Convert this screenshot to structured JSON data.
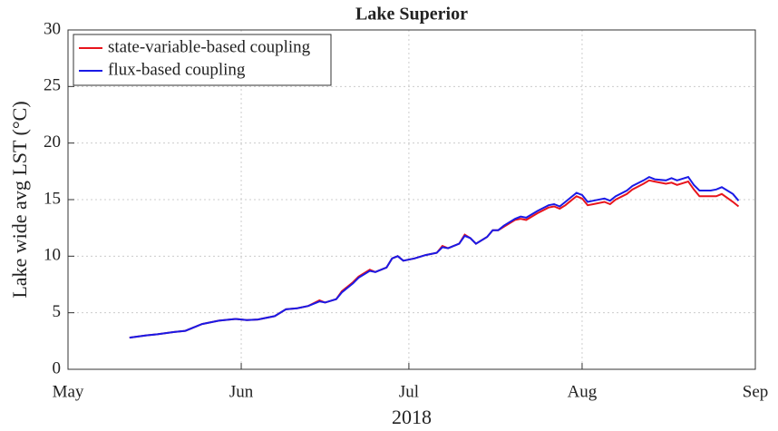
{
  "chart_data": {
    "type": "line",
    "title": "Lake Superior",
    "xlabel": "2018",
    "ylabel": "Lake wide avg LST (°C)",
    "x": [
      11,
      14,
      16,
      19,
      21,
      24,
      27,
      30,
      32,
      34,
      37,
      39,
      41,
      43,
      45,
      46,
      48,
      49,
      51,
      52,
      54,
      55,
      57,
      58,
      59,
      60,
      62,
      64,
      66,
      67,
      68,
      70,
      71,
      72,
      73,
      75,
      76,
      77,
      78,
      80,
      81,
      82,
      84,
      86,
      87,
      88,
      89,
      90,
      91,
      92,
      93,
      94,
      96,
      97,
      98,
      100,
      101,
      103,
      104,
      105,
      107,
      108,
      109,
      111,
      112,
      113,
      115,
      116,
      117,
      119,
      120
    ],
    "series": [
      {
        "name": "state-variable-based coupling",
        "color": "#e8141c",
        "values": [
          2.8,
          3.0,
          3.1,
          3.3,
          3.4,
          4.0,
          4.3,
          4.45,
          4.35,
          4.4,
          4.7,
          5.3,
          5.4,
          5.6,
          6.1,
          5.9,
          6.2,
          6.9,
          7.7,
          8.2,
          8.8,
          8.6,
          9.0,
          9.8,
          10.0,
          9.6,
          9.8,
          10.1,
          10.3,
          10.9,
          10.7,
          11.1,
          11.9,
          11.6,
          11.1,
          11.7,
          12.3,
          12.3,
          12.6,
          13.2,
          13.3,
          13.2,
          13.8,
          14.3,
          14.4,
          14.2,
          14.5,
          14.9,
          15.3,
          15.1,
          14.5,
          14.6,
          14.8,
          14.6,
          15.0,
          15.5,
          15.9,
          16.4,
          16.7,
          16.6,
          16.4,
          16.5,
          16.3,
          16.6,
          15.9,
          15.3,
          15.3,
          15.3,
          15.5,
          14.8,
          14.4
        ]
      },
      {
        "name": "flux-based coupling",
        "color": "#1a1ae6",
        "values": [
          2.8,
          3.0,
          3.1,
          3.3,
          3.4,
          4.0,
          4.3,
          4.45,
          4.35,
          4.4,
          4.7,
          5.3,
          5.4,
          5.6,
          6.0,
          5.9,
          6.2,
          6.8,
          7.6,
          8.1,
          8.7,
          8.6,
          9.0,
          9.8,
          10.0,
          9.6,
          9.8,
          10.1,
          10.3,
          10.8,
          10.7,
          11.1,
          11.8,
          11.6,
          11.1,
          11.7,
          12.3,
          12.3,
          12.7,
          13.3,
          13.5,
          13.4,
          14.0,
          14.5,
          14.6,
          14.4,
          14.8,
          15.2,
          15.6,
          15.4,
          14.8,
          14.9,
          15.1,
          14.9,
          15.3,
          15.8,
          16.2,
          16.7,
          17.0,
          16.8,
          16.7,
          16.9,
          16.7,
          17.0,
          16.3,
          15.8,
          15.8,
          15.9,
          16.1,
          15.5,
          14.9
        ]
      }
    ],
    "xlim": [
      0,
      123
    ],
    "xticks": [
      {
        "value": 0,
        "label": "May"
      },
      {
        "value": 31,
        "label": "Jun"
      },
      {
        "value": 61,
        "label": "Jul"
      },
      {
        "value": 92,
        "label": "Aug"
      },
      {
        "value": 123,
        "label": "Sep"
      }
    ],
    "ylim": [
      0,
      30
    ],
    "yticks": [
      0,
      5,
      10,
      15,
      20,
      25,
      30
    ],
    "grid": true,
    "legend": "upper left"
  }
}
